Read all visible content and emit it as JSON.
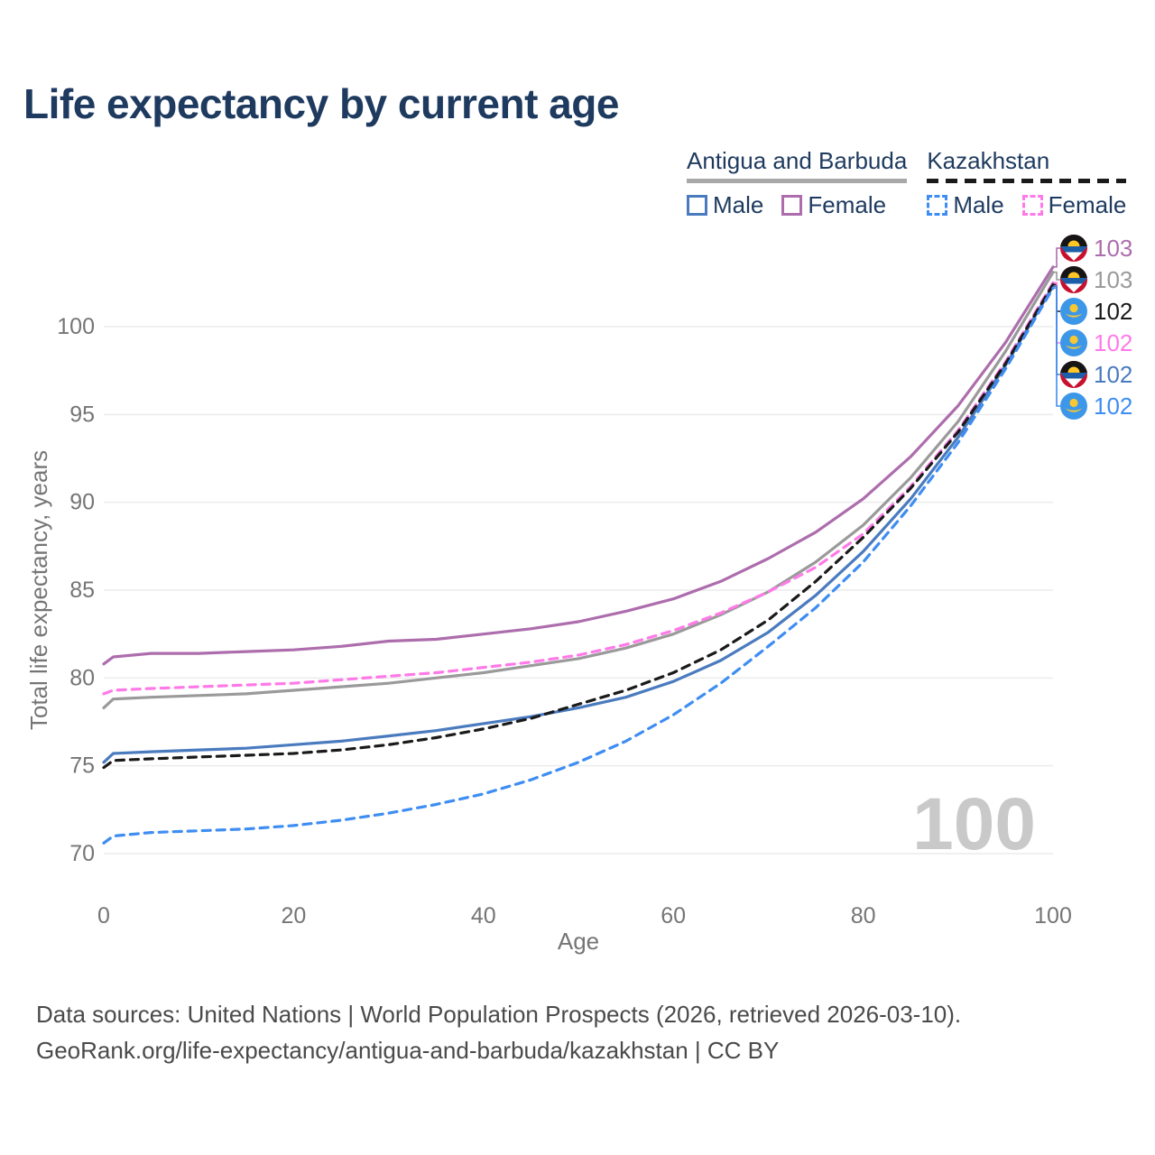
{
  "title": "Life expectancy by current age",
  "legend": {
    "groups": [
      {
        "label": "Antigua and Barbuda",
        "line": "solid",
        "color": "#a8a8a8"
      },
      {
        "label": "Kazakhstan",
        "line": "dashed",
        "color": "#1a1a1a"
      }
    ],
    "items": [
      {
        "label": "Male",
        "line": "solid",
        "color": "#4a7bbf"
      },
      {
        "label": "Female",
        "line": "solid",
        "color": "#ad6dad"
      },
      {
        "label": "Male",
        "line": "dashed",
        "color": "#3e8df2"
      },
      {
        "label": "Female",
        "line": "dashed",
        "color": "#ff7ae8"
      }
    ]
  },
  "watermark": "100",
  "footer": {
    "line1": "Data sources: United Nations | World Population Prospects (2026, retrieved 2026-03-10).",
    "line2": "GeoRank.org/life-expectancy/antigua-and-barbuda/kazakhstan | CC BY"
  },
  "chart_data": {
    "type": "line",
    "title": "Life expectancy by current age",
    "xlabel": "Age",
    "ylabel": "Total life expectancy, years",
    "xlim": [
      0,
      100
    ],
    "ylim": [
      68,
      105
    ],
    "xticks": [
      0,
      20,
      40,
      60,
      80,
      100
    ],
    "yticks": [
      70,
      75,
      80,
      85,
      90,
      95,
      100
    ],
    "grid": "horizontal",
    "legend_position": "top-right",
    "ages": [
      0,
      1,
      5,
      10,
      15,
      20,
      25,
      30,
      35,
      40,
      45,
      50,
      55,
      60,
      65,
      70,
      75,
      80,
      85,
      90,
      95,
      100
    ],
    "series": [
      {
        "name": "Antigua and Barbuda — Female",
        "country": "Antigua and Barbuda",
        "sex": "female",
        "line": "solid",
        "color": "#ad6dad",
        "end_label": "103",
        "flag": "antigua-and-barbuda",
        "values": [
          80.8,
          81.2,
          81.4,
          81.4,
          81.5,
          81.6,
          81.8,
          82.1,
          82.2,
          82.5,
          82.8,
          83.2,
          83.8,
          84.5,
          85.5,
          86.8,
          88.3,
          90.2,
          92.6,
          95.5,
          99.1,
          103.4
        ]
      },
      {
        "name": "Antigua and Barbuda — Both sexes",
        "country": "Antigua and Barbuda",
        "sex": "both",
        "line": "solid",
        "color": "#9a9a9a",
        "end_label": "103",
        "flag": "antigua-and-barbuda",
        "values": [
          78.3,
          78.8,
          78.9,
          79.0,
          79.1,
          79.3,
          79.5,
          79.7,
          80.0,
          80.3,
          80.7,
          81.1,
          81.7,
          82.5,
          83.6,
          84.9,
          86.6,
          88.7,
          91.4,
          94.6,
          98.6,
          103.1
        ]
      },
      {
        "name": "Kazakhstan — Both sexes",
        "country": "Kazakhstan",
        "sex": "both",
        "line": "dashed",
        "color": "#1a1a1a",
        "end_label": "102",
        "flag": "kazakhstan",
        "values": [
          74.9,
          75.3,
          75.4,
          75.5,
          75.6,
          75.7,
          75.9,
          76.2,
          76.6,
          77.1,
          77.7,
          78.5,
          79.3,
          80.3,
          81.6,
          83.3,
          85.5,
          88.0,
          90.8,
          94.0,
          97.9,
          102.4
        ]
      },
      {
        "name": "Kazakhstan — Female",
        "country": "Kazakhstan",
        "sex": "female",
        "line": "dashed",
        "color": "#ff7ae8",
        "end_label": "102",
        "flag": "kazakhstan",
        "values": [
          79.1,
          79.3,
          79.4,
          79.5,
          79.6,
          79.7,
          79.9,
          80.1,
          80.3,
          80.6,
          80.9,
          81.3,
          81.9,
          82.7,
          83.7,
          84.9,
          86.3,
          88.2,
          90.9,
          94.1,
          98.0,
          102.5
        ]
      },
      {
        "name": "Antigua and Barbuda — Male",
        "country": "Antigua and Barbuda",
        "sex": "male",
        "line": "solid",
        "color": "#4a7bbf",
        "end_label": "102",
        "flag": "antigua-and-barbuda",
        "values": [
          75.2,
          75.7,
          75.8,
          75.9,
          76.0,
          76.2,
          76.4,
          76.7,
          77.0,
          77.4,
          77.8,
          78.3,
          78.9,
          79.8,
          81.0,
          82.6,
          84.7,
          87.2,
          90.2,
          93.7,
          97.8,
          102.3
        ]
      },
      {
        "name": "Kazakhstan — Male",
        "country": "Kazakhstan",
        "sex": "male",
        "line": "dashed",
        "color": "#3e8df2",
        "end_label": "102",
        "flag": "kazakhstan",
        "values": [
          70.6,
          71.0,
          71.2,
          71.3,
          71.4,
          71.6,
          71.9,
          72.3,
          72.8,
          73.4,
          74.2,
          75.2,
          76.4,
          77.9,
          79.7,
          81.8,
          84.0,
          86.6,
          89.8,
          93.4,
          97.6,
          102.2
        ]
      }
    ]
  }
}
